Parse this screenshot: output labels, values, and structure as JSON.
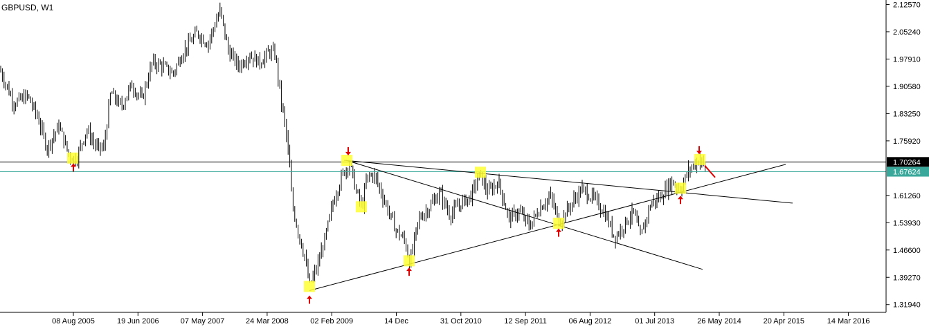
{
  "chart_data": {
    "type": "bar",
    "style": "ohlc-weekly",
    "title": "GBPUSD, W1",
    "x_tick_labels": [
      "08 Aug 2005",
      "19 Jun 2006",
      "07 May 2007",
      "24 Mar 2008",
      "02 Feb 2009",
      "14 Dec",
      "31 Oct 2010",
      "12 Sep 2011",
      "06 Aug 2012",
      "01 Jul 2013",
      "26 May 2014",
      "20 Apr 2015",
      "14 Mar 2016"
    ],
    "y_tick_labels": [
      "2.12570",
      "2.05240",
      "1.97910",
      "1.90580",
      "1.83250",
      "1.75920",
      "1.61260",
      "1.53930",
      "1.46600",
      "1.39270",
      "1.31940"
    ],
    "ylim": [
      1.2985,
      2.1377
    ],
    "x_range": [
      0,
      1280
    ],
    "price_levels": [
      {
        "value": 1.70264,
        "label": "1.70264",
        "color": "#000000"
      },
      {
        "value": 1.67624,
        "label": "1.67624",
        "color": "#3aa89a"
      }
    ],
    "price_series": [
      {
        "x": 0,
        "y": 1.95
      },
      {
        "x": 20,
        "y": 1.86
      },
      {
        "x": 40,
        "y": 1.88
      },
      {
        "x": 55,
        "y": 1.82
      },
      {
        "x": 68,
        "y": 1.74
      },
      {
        "x": 85,
        "y": 1.8
      },
      {
        "x": 100,
        "y": 1.72
      },
      {
        "x": 110,
        "y": 1.71
      },
      {
        "x": 125,
        "y": 1.79
      },
      {
        "x": 140,
        "y": 1.74
      },
      {
        "x": 150,
        "y": 1.74
      },
      {
        "x": 160,
        "y": 1.89
      },
      {
        "x": 175,
        "y": 1.85
      },
      {
        "x": 190,
        "y": 1.91
      },
      {
        "x": 205,
        "y": 1.87
      },
      {
        "x": 220,
        "y": 1.97
      },
      {
        "x": 235,
        "y": 1.96
      },
      {
        "x": 250,
        "y": 1.94
      },
      {
        "x": 265,
        "y": 2.0
      },
      {
        "x": 285,
        "y": 2.05
      },
      {
        "x": 300,
        "y": 2.02
      },
      {
        "x": 318,
        "y": 2.11
      },
      {
        "x": 330,
        "y": 2.0
      },
      {
        "x": 345,
        "y": 1.96
      },
      {
        "x": 360,
        "y": 1.99
      },
      {
        "x": 375,
        "y": 1.97
      },
      {
        "x": 390,
        "y": 2.0
      },
      {
        "x": 398,
        "y": 1.99
      },
      {
        "x": 405,
        "y": 1.88
      },
      {
        "x": 412,
        "y": 1.8
      },
      {
        "x": 418,
        "y": 1.7
      },
      {
        "x": 422,
        "y": 1.59
      },
      {
        "x": 430,
        "y": 1.52
      },
      {
        "x": 440,
        "y": 1.45
      },
      {
        "x": 447,
        "y": 1.37
      },
      {
        "x": 458,
        "y": 1.42
      },
      {
        "x": 470,
        "y": 1.5
      },
      {
        "x": 482,
        "y": 1.6
      },
      {
        "x": 495,
        "y": 1.67
      },
      {
        "x": 505,
        "y": 1.7
      },
      {
        "x": 515,
        "y": 1.62
      },
      {
        "x": 523,
        "y": 1.58
      },
      {
        "x": 530,
        "y": 1.66
      },
      {
        "x": 540,
        "y": 1.67
      },
      {
        "x": 555,
        "y": 1.6
      },
      {
        "x": 572,
        "y": 1.52
      },
      {
        "x": 585,
        "y": 1.49
      },
      {
        "x": 592,
        "y": 1.43
      },
      {
        "x": 605,
        "y": 1.55
      },
      {
        "x": 620,
        "y": 1.58
      },
      {
        "x": 635,
        "y": 1.62
      },
      {
        "x": 650,
        "y": 1.56
      },
      {
        "x": 665,
        "y": 1.59
      },
      {
        "x": 680,
        "y": 1.61
      },
      {
        "x": 693,
        "y": 1.67
      },
      {
        "x": 705,
        "y": 1.62
      },
      {
        "x": 720,
        "y": 1.65
      },
      {
        "x": 735,
        "y": 1.55
      },
      {
        "x": 750,
        "y": 1.57
      },
      {
        "x": 765,
        "y": 1.53
      },
      {
        "x": 780,
        "y": 1.58
      },
      {
        "x": 795,
        "y": 1.61
      },
      {
        "x": 808,
        "y": 1.54
      },
      {
        "x": 822,
        "y": 1.58
      },
      {
        "x": 840,
        "y": 1.63
      },
      {
        "x": 860,
        "y": 1.6
      },
      {
        "x": 875,
        "y": 1.56
      },
      {
        "x": 888,
        "y": 1.5
      },
      {
        "x": 900,
        "y": 1.53
      },
      {
        "x": 915,
        "y": 1.57
      },
      {
        "x": 925,
        "y": 1.5
      },
      {
        "x": 940,
        "y": 1.59
      },
      {
        "x": 955,
        "y": 1.61
      },
      {
        "x": 970,
        "y": 1.65
      },
      {
        "x": 983,
        "y": 1.63
      },
      {
        "x": 995,
        "y": 1.68
      },
      {
        "x": 1005,
        "y": 1.7
      },
      {
        "x": 1012,
        "y": 1.71
      },
      {
        "x": 1020,
        "y": 1.68
      }
    ],
    "trend_lines": [
      {
        "x1": 497,
        "y1": 1.707,
        "x2": 1145,
        "y2": 1.592
      },
      {
        "x1": 500,
        "y1": 1.707,
        "x2": 1015,
        "y2": 1.414
      },
      {
        "x1": 447,
        "y1": 1.357,
        "x2": 1135,
        "y2": 1.696
      }
    ],
    "markers": [
      {
        "x": 106,
        "y": 1.71,
        "type": "up-arrow"
      },
      {
        "x": 447,
        "y": 1.355,
        "type": "up-arrow"
      },
      {
        "x": 591,
        "y": 1.43,
        "type": "up-arrow"
      },
      {
        "x": 807,
        "y": 1.535,
        "type": "up-arrow"
      },
      {
        "x": 983,
        "y": 1.623,
        "type": "up-arrow"
      },
      {
        "x": 503,
        "y": 1.709,
        "type": "down-arrow"
      },
      {
        "x": 1010,
        "y": 1.712,
        "type": "down-arrow"
      }
    ],
    "highlights": [
      {
        "x": 105,
        "y": 1.713
      },
      {
        "x": 501,
        "y": 1.707
      },
      {
        "x": 522,
        "y": 1.582
      },
      {
        "x": 447,
        "y": 1.368
      },
      {
        "x": 591,
        "y": 1.437
      },
      {
        "x": 807,
        "y": 1.538
      },
      {
        "x": 983,
        "y": 1.632
      },
      {
        "x": 1011,
        "y": 1.709
      },
      {
        "x": 694,
        "y": 1.675
      }
    ],
    "red_arrow": {
      "x1": 1018,
      "y1": 1.693,
      "x2": 1033,
      "y2": 1.661
    },
    "colors": {
      "bars": "#000000",
      "highlight": "#ffff33",
      "arrows": "#dd0000",
      "trendline": "#000000",
      "axis": "#000000",
      "background": "#ffffff"
    }
  }
}
